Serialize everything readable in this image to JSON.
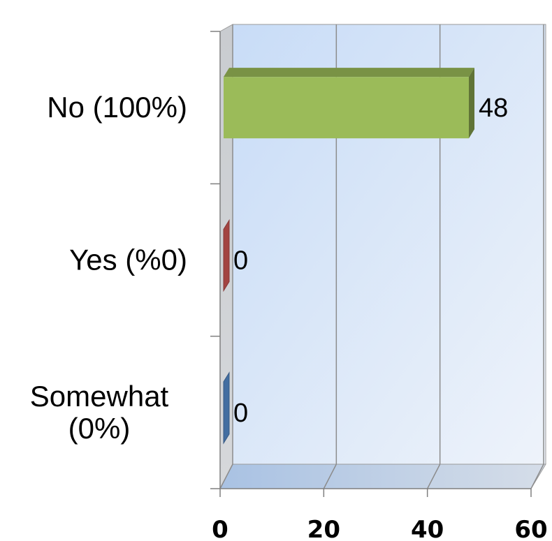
{
  "chart_data": {
    "type": "bar",
    "orientation": "horizontal",
    "style": "3d",
    "categories": [
      "No (100%)",
      "Yes (%0)",
      "Somewhat (0%)"
    ],
    "category_lines": [
      [
        "No (100%)"
      ],
      [
        "Yes (%0)"
      ],
      [
        "Somewhat",
        "(0%)"
      ]
    ],
    "values": [
      48,
      0,
      0
    ],
    "data_labels": [
      "48",
      "0",
      "0"
    ],
    "bar_colors": [
      "#9bbb59",
      "#c0504d",
      "#4f81bd"
    ],
    "xlim": [
      0,
      60
    ],
    "xticks": [
      0,
      20,
      40,
      60
    ],
    "xtick_labels": [
      "0",
      "20",
      "40",
      "60"
    ],
    "grid": true,
    "legend": "none",
    "title": "",
    "xlabel": "",
    "ylabel": ""
  }
}
